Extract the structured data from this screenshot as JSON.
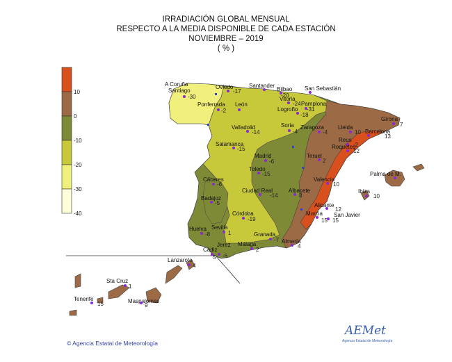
{
  "header": {
    "line1": "IRRADIACIÓN GLOBAL MENSUAL",
    "line2": "RESPECTO A LA MEDIA DISPONIBLE DE CADA ESTACIÓN",
    "line3": "NOVIEMBRE  – 2019",
    "line4": "( % )"
  },
  "legend": {
    "ticks": [
      "10",
      "0",
      "-10",
      "-20",
      "-30",
      "-40"
    ],
    "colors": [
      "#d8501e",
      "#9c6a45",
      "#7f8a37",
      "#c8c93a",
      "#f2f07c",
      "#fefed8"
    ]
  },
  "stations": [
    {
      "name": "A Coruña",
      "value": ""
    },
    {
      "name": "Santiago",
      "value": "-30"
    },
    {
      "name": "Oviedo",
      "value": "-17"
    },
    {
      "name": "Santander",
      "value": ""
    },
    {
      "name": "Bilbao",
      "value": "-20"
    },
    {
      "name": "San Sebastián",
      "value": ""
    },
    {
      "name": "Vitoria",
      "value": "-24"
    },
    {
      "name": "Pamplona",
      "value": ""
    },
    {
      "name": "Logroño",
      "value": "-31"
    },
    {
      "name": "",
      "value": "-18"
    },
    {
      "name": "Ponferrada",
      "value": "-2"
    },
    {
      "name": "León",
      "value": ""
    },
    {
      "name": "Valladolid",
      "value": "-14"
    },
    {
      "name": "Soria",
      "value": "-4"
    },
    {
      "name": "Zaragoza",
      "value": "-4"
    },
    {
      "name": "Lleida",
      "value": "10"
    },
    {
      "name": "Girona",
      "value": "7"
    },
    {
      "name": "Barcelona",
      "value": "13"
    },
    {
      "name": "Reus",
      "value": "-2"
    },
    {
      "name": "Roquetes",
      "value": "12"
    },
    {
      "name": "Salamanca",
      "value": "-15"
    },
    {
      "name": "Madrid",
      "value": "-6"
    },
    {
      "name": "Teruel",
      "value": "2"
    },
    {
      "name": "Toledo",
      "value": "-15"
    },
    {
      "name": "Valencia",
      "value": "10"
    },
    {
      "name": "Palma de M.",
      "value": ""
    },
    {
      "name": "Ibiza",
      "value": "10"
    },
    {
      "name": "Cáceres",
      "value": "-6"
    },
    {
      "name": "Ciudad Real",
      "value": "-14"
    },
    {
      "name": "Albacete",
      "value": "8"
    },
    {
      "name": "Badajoz",
      "value": "-5"
    },
    {
      "name": "Alicante",
      "value": "12"
    },
    {
      "name": "Murcia",
      "value": "15"
    },
    {
      "name": "San Javier",
      "value": "15"
    },
    {
      "name": "Córdoba",
      "value": "-19"
    },
    {
      "name": "Huelva",
      "value": "-8"
    },
    {
      "name": "Sevilla",
      "value": "1"
    },
    {
      "name": "Granada",
      "value": "-7"
    },
    {
      "name": "Almería",
      "value": "4"
    },
    {
      "name": "Jerez",
      "value": "-6"
    },
    {
      "name": "Málaga",
      "value": "2"
    },
    {
      "name": "Cádiz",
      "value": "5"
    },
    {
      "name": "Lanzarote",
      "value": "4"
    },
    {
      "name": "Sta Cruz",
      "value": "1"
    },
    {
      "name": "Tenerife",
      "value": "15"
    },
    {
      "name": "Maspalomas",
      "value": "9"
    }
  ],
  "footer": {
    "credit": "© Agencia Estatal de Meteorología",
    "logo_text": "AEMet",
    "logo_sub": "Agencia Estatal de Meteorología"
  }
}
